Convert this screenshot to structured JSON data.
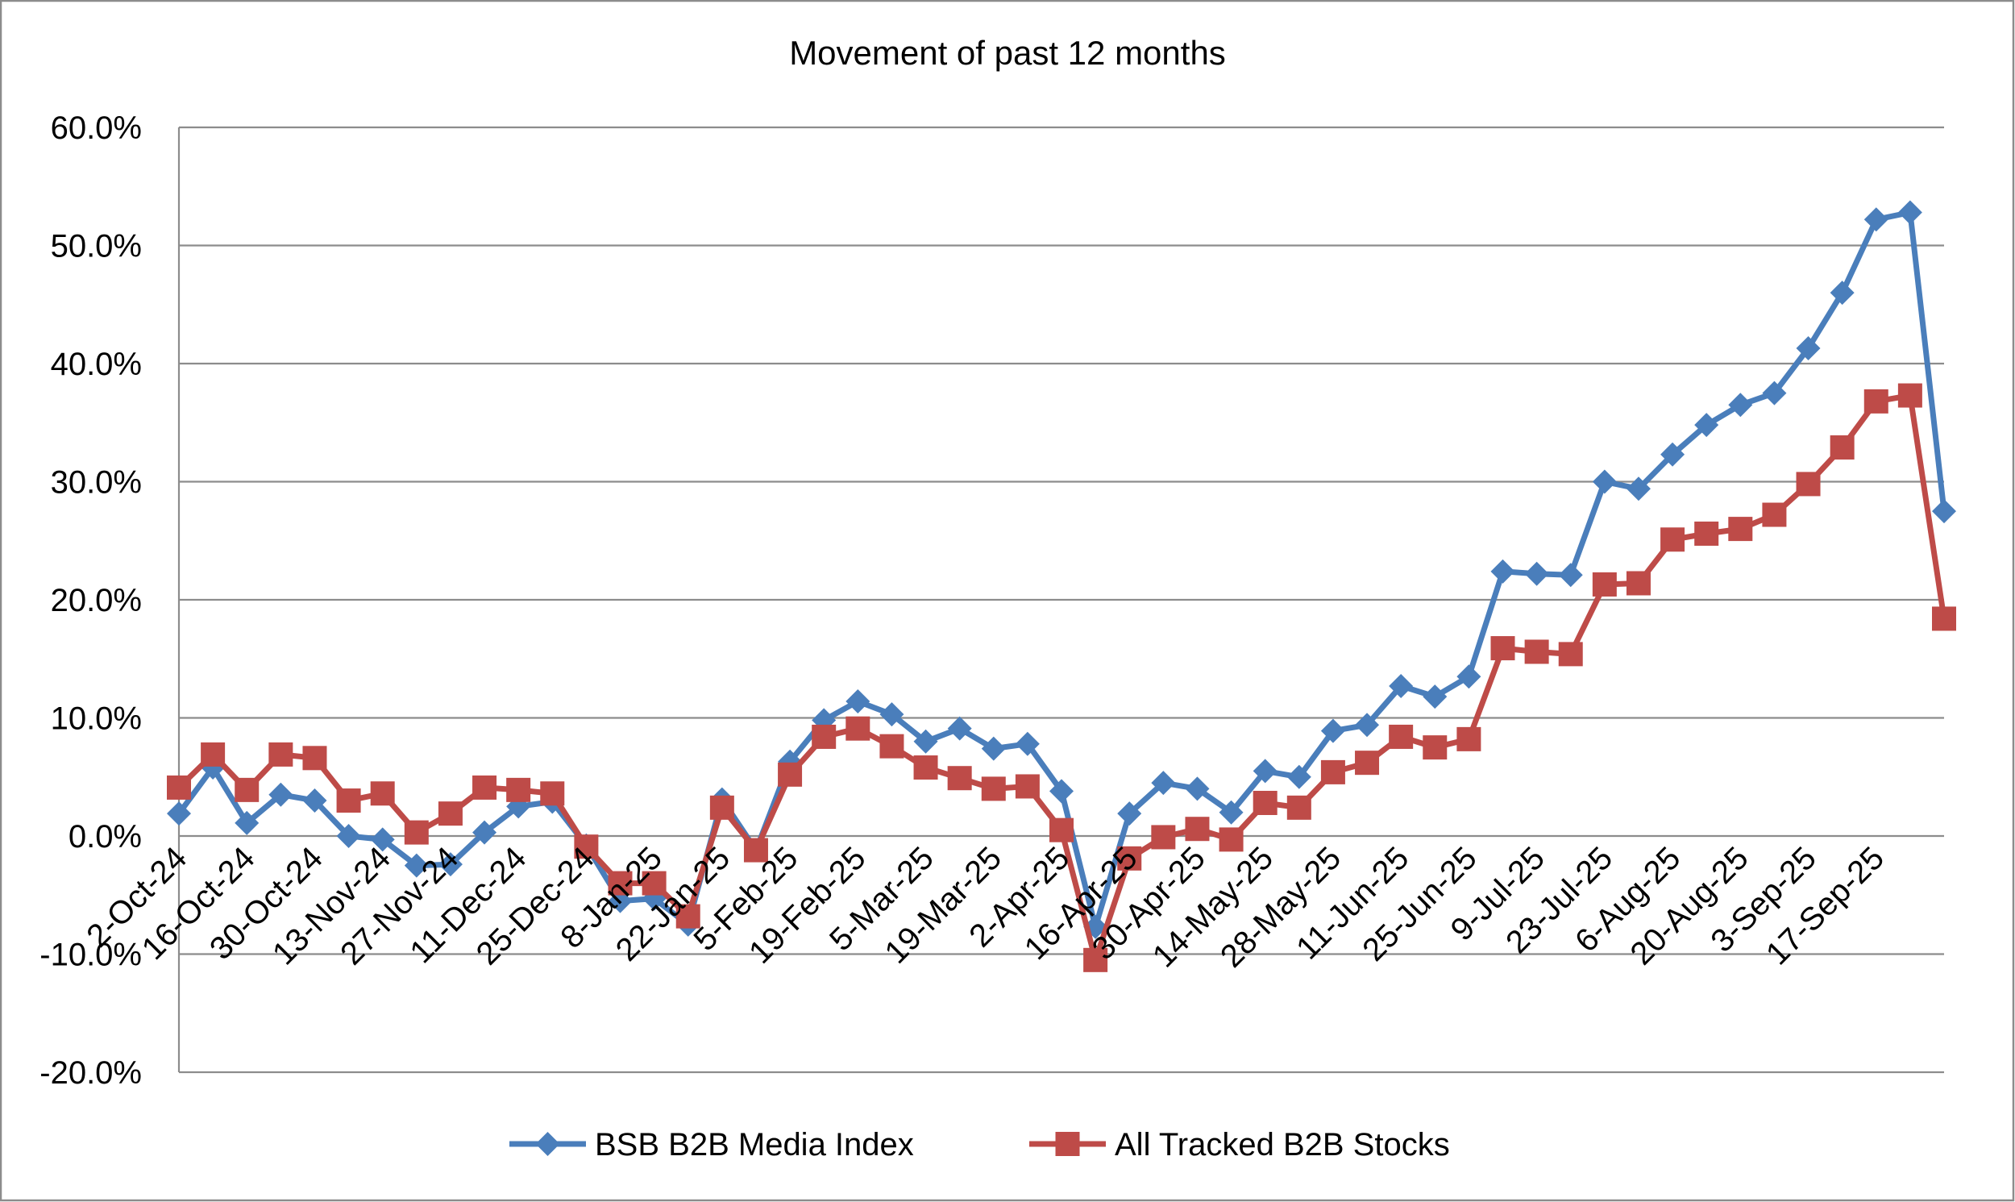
{
  "chart_data": {
    "type": "line",
    "title": "Movement of past 12 months",
    "xlabel": "",
    "ylabel": "",
    "ylim": [
      -20,
      60
    ],
    "y_ticks": [
      60,
      50,
      40,
      30,
      20,
      10,
      0,
      -10,
      -20
    ],
    "y_tick_labels": [
      "60.0%",
      "50.0%",
      "40.0%",
      "30.0%",
      "20.0%",
      "10.0%",
      "0.0%",
      "-10.0%",
      "-20.0%"
    ],
    "x_tick_labels": [
      "2-Oct-24",
      "16-Oct-24",
      "30-Oct-24",
      "13-Nov-24",
      "27-Nov-24",
      "11-Dec-24",
      "25-Dec-24",
      "8-Jan-25",
      "22-Jan-25",
      "5-Feb-25",
      "19-Feb-25",
      "5-Mar-25",
      "19-Mar-25",
      "2-Apr-25",
      "16-Apr-25",
      "30-Apr-25",
      "14-May-25",
      "28-May-25",
      "11-Jun-25",
      "25-Jun-25",
      "9-Jul-25",
      "23-Jul-25",
      "6-Aug-25",
      "20-Aug-25",
      "3-Sep-25",
      "17-Sep-25"
    ],
    "grid": true,
    "legend_position": "bottom",
    "series": [
      {
        "name": "BSB B2B Media Index",
        "color": "#4a7ebb",
        "marker": "diamond",
        "values": [
          1.9,
          5.8,
          1.1,
          3.5,
          3.0,
          0.0,
          -0.3,
          -2.5,
          -2.4,
          0.3,
          2.5,
          2.9,
          -0.8,
          -5.5,
          -5.3,
          -7.5,
          3.1,
          -1.2,
          6.3,
          9.8,
          11.4,
          10.3,
          8.0,
          9.1,
          7.4,
          7.8,
          3.8,
          -7.7,
          1.9,
          4.5,
          4.0,
          2.0,
          5.5,
          5.0,
          8.9,
          9.4,
          12.7,
          11.8,
          13.5,
          22.4,
          22.2,
          22.1,
          30.0,
          29.4,
          32.3,
          34.8,
          36.5,
          37.5,
          41.3,
          46.0,
          52.2,
          52.8,
          27.5
        ]
      },
      {
        "name": "All Tracked B2B Stocks",
        "color": "#be4b48",
        "marker": "square",
        "values": [
          4.1,
          6.9,
          3.9,
          6.9,
          6.6,
          3.0,
          3.6,
          0.3,
          1.9,
          4.1,
          3.9,
          3.6,
          -0.9,
          -4.0,
          -4.0,
          -6.8,
          2.4,
          -1.2,
          5.2,
          8.4,
          9.1,
          7.6,
          5.8,
          4.9,
          4.0,
          4.2,
          0.5,
          -10.5,
          -1.9,
          -0.1,
          0.6,
          -0.3,
          2.8,
          2.4,
          5.4,
          6.2,
          8.4,
          7.5,
          8.2,
          15.9,
          15.6,
          15.4,
          21.3,
          21.4,
          25.1,
          25.6,
          26.0,
          27.2,
          29.8,
          32.9,
          36.8,
          37.3,
          18.4
        ]
      }
    ]
  }
}
